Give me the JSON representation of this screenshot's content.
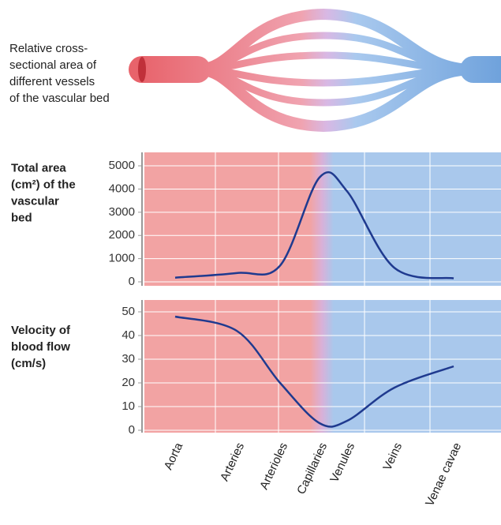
{
  "annotation": [
    "Relative cross-",
    "sectional area of",
    "different vessels",
    "of the vascular bed"
  ],
  "chart_data": [
    {
      "type": "line",
      "ylabel": [
        "Total area",
        "(cm²) of the",
        "vascular",
        "bed"
      ],
      "categories": [
        null,
        null,
        null,
        null,
        null,
        null,
        null
      ],
      "series": [
        {
          "color": "#1f3a8f",
          "values": [
            180,
            380,
            700,
            4500,
            3900,
            600,
            150
          ]
        }
      ],
      "ylim": [
        -170,
        5580
      ],
      "yticks": [
        0,
        1000,
        2000,
        3000,
        4000,
        5000
      ],
      "grid": true
    },
    {
      "type": "line",
      "ylabel": [
        "Velocity of",
        "blood flow",
        "(cm/s)"
      ],
      "categories": [
        "Aorta",
        "Arteries",
        "Arterioles",
        "Capillaries",
        "Venules",
        "Veins",
        "Venae cavae"
      ],
      "series": [
        {
          "color": "#1f3a8f",
          "values": [
            48,
            42,
            20,
            3,
            4,
            18,
            27
          ]
        }
      ],
      "ylim": [
        -1,
        55
      ],
      "yticks": [
        0,
        10,
        20,
        30,
        40,
        50
      ],
      "grid": true
    }
  ]
}
